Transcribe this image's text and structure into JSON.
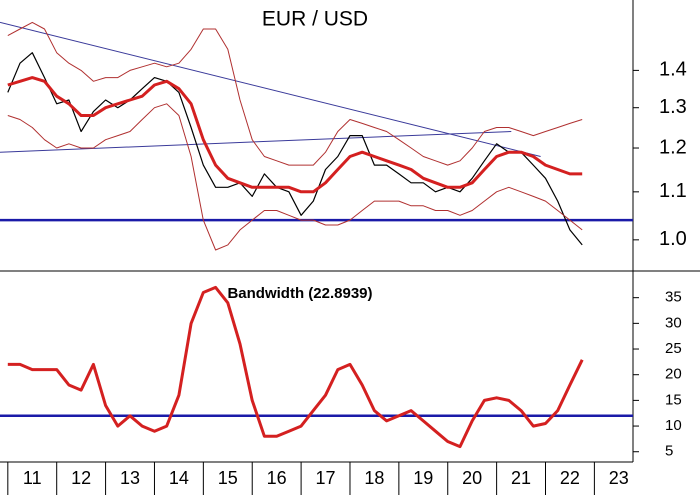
{
  "chart_data": [
    {
      "type": "line",
      "title": "EUR / USD",
      "log": true,
      "xlim": [
        2010.84,
        2023.79
      ],
      "ylim": [
        0.94,
        1.61
      ],
      "yticks": [
        {
          "value": 1,
          "label": "1.0"
        },
        1.1,
        1.2,
        1.3,
        1.4
      ],
      "x": [
        2011,
        2011.25,
        2011.5,
        2011.75,
        2012,
        2012.25,
        2012.5,
        2012.75,
        2013,
        2013.25,
        2013.5,
        2013.75,
        2014,
        2014.25,
        2014.5,
        2014.75,
        2015,
        2015.25,
        2015.5,
        2015.75,
        2016,
        2016.25,
        2016.5,
        2016.75,
        2017,
        2017.25,
        2017.5,
        2017.75,
        2018,
        2018.25,
        2018.5,
        2018.75,
        2019,
        2019.25,
        2019.5,
        2019.75,
        2020,
        2020.25,
        2020.5,
        2020.75,
        2021,
        2021.25,
        2021.5,
        2021.75,
        2022,
        2022.25,
        2022.5,
        2022.75
      ],
      "series": [
        {
          "color": "#000000",
          "line_width": 1.2,
          "values": [
            1.34,
            1.42,
            1.45,
            1.38,
            1.31,
            1.32,
            1.24,
            1.29,
            1.32,
            1.3,
            1.32,
            1.35,
            1.38,
            1.37,
            1.34,
            1.25,
            1.16,
            1.11,
            1.11,
            1.12,
            1.09,
            1.14,
            1.11,
            1.1,
            1.05,
            1.08,
            1.15,
            1.18,
            1.23,
            1.23,
            1.16,
            1.16,
            1.14,
            1.12,
            1.12,
            1.1,
            1.11,
            1.1,
            1.13,
            1.17,
            1.21,
            1.19,
            1.19,
            1.16,
            1.13,
            1.08,
            1.02,
            0.99
          ]
        },
        {
          "color": "#b03030",
          "line_width": 1,
          "values": [
            1.5,
            1.52,
            1.54,
            1.52,
            1.45,
            1.42,
            1.4,
            1.37,
            1.38,
            1.38,
            1.4,
            1.41,
            1.42,
            1.41,
            1.42,
            1.46,
            1.52,
            1.52,
            1.46,
            1.32,
            1.22,
            1.18,
            1.17,
            1.16,
            1.16,
            1.16,
            1.19,
            1.24,
            1.27,
            1.26,
            1.25,
            1.24,
            1.22,
            1.2,
            1.18,
            1.17,
            1.16,
            1.17,
            1.2,
            1.24,
            1.25,
            1.25,
            1.24,
            1.23,
            1.24,
            1.25,
            1.26,
            1.27
          ]
        },
        {
          "color": "#b03030",
          "line_width": 1,
          "values": [
            1.28,
            1.27,
            1.25,
            1.22,
            1.2,
            1.21,
            1.2,
            1.2,
            1.22,
            1.23,
            1.24,
            1.27,
            1.3,
            1.31,
            1.28,
            1.18,
            1.04,
            0.98,
            0.99,
            1.02,
            1.04,
            1.06,
            1.06,
            1.05,
            1.04,
            1.04,
            1.03,
            1.03,
            1.04,
            1.06,
            1.08,
            1.08,
            1.08,
            1.07,
            1.07,
            1.06,
            1.06,
            1.05,
            1.06,
            1.08,
            1.1,
            1.11,
            1.1,
            1.09,
            1.08,
            1.06,
            1.04,
            1.02
          ]
        },
        {
          "color": "#d42020",
          "line_width": 3,
          "values": [
            1.36,
            1.37,
            1.38,
            1.37,
            1.33,
            1.31,
            1.28,
            1.28,
            1.3,
            1.31,
            1.32,
            1.33,
            1.36,
            1.37,
            1.35,
            1.31,
            1.22,
            1.16,
            1.13,
            1.12,
            1.11,
            1.11,
            1.11,
            1.11,
            1.1,
            1.1,
            1.12,
            1.15,
            1.18,
            1.19,
            1.18,
            1.17,
            1.16,
            1.15,
            1.13,
            1.12,
            1.11,
            1.11,
            1.12,
            1.15,
            1.18,
            1.19,
            1.19,
            1.18,
            1.16,
            1.15,
            1.14,
            1.14
          ]
        }
      ],
      "trendlines": [
        {
          "color": "#3a3a9a",
          "x": [
            2010.84,
            2021.9
          ],
          "values": [
            1.54,
            1.18
          ]
        },
        {
          "color": "#3a3a9a",
          "x": [
            2010.84,
            2021.3
          ],
          "values": [
            1.19,
            1.24
          ]
        }
      ],
      "hline": {
        "value": 1.04,
        "color": "#1a1aa8"
      }
    },
    {
      "type": "line",
      "title": "Bandwidth (22.8939)",
      "xlim": [
        2010.84,
        2023.79
      ],
      "ylim": [
        3,
        40
      ],
      "yticks": [
        5,
        10,
        15,
        20,
        25,
        30,
        35
      ],
      "xticks": [
        {
          "value": 2011,
          "label": "11"
        },
        {
          "value": 2012,
          "label": "12"
        },
        {
          "value": 2013,
          "label": "13"
        },
        {
          "value": 2014,
          "label": "14"
        },
        {
          "value": 2015,
          "label": "15"
        },
        {
          "value": 2016,
          "label": "16"
        },
        {
          "value": 2017,
          "label": "17"
        },
        {
          "value": 2018,
          "label": "18"
        },
        {
          "value": 2019,
          "label": "19"
        },
        {
          "value": 2020,
          "label": "20"
        },
        {
          "value": 2021,
          "label": "21"
        },
        {
          "value": 2022,
          "label": "22"
        },
        {
          "value": 2023,
          "label": "23"
        }
      ],
      "x": [
        2011,
        2011.25,
        2011.5,
        2011.75,
        2012,
        2012.25,
        2012.5,
        2012.75,
        2013,
        2013.25,
        2013.5,
        2013.75,
        2014,
        2014.25,
        2014.5,
        2014.75,
        2015,
        2015.25,
        2015.5,
        2015.75,
        2016,
        2016.25,
        2016.5,
        2016.75,
        2017,
        2017.25,
        2017.5,
        2017.75,
        2018,
        2018.25,
        2018.5,
        2018.75,
        2019,
        2019.25,
        2019.5,
        2019.75,
        2020,
        2020.25,
        2020.5,
        2020.75,
        2021,
        2021.25,
        2021.5,
        2021.75,
        2022,
        2022.25,
        2022.5,
        2022.75
      ],
      "series": [
        {
          "color": "#d42020",
          "line_width": 3,
          "values": [
            22,
            22,
            21,
            21,
            21,
            18,
            17,
            22,
            14,
            10,
            12,
            10,
            9,
            10,
            16,
            30,
            36,
            37,
            34,
            26,
            15,
            8,
            8,
            9,
            10,
            13,
            16,
            21,
            22,
            18,
            13,
            11,
            12,
            13,
            11,
            9,
            7,
            6,
            11,
            15,
            15.5,
            15,
            13,
            10,
            10.5,
            13,
            18,
            22.9
          ]
        }
      ],
      "hline": {
        "value": 12,
        "color": "#1a1aa8"
      }
    }
  ]
}
